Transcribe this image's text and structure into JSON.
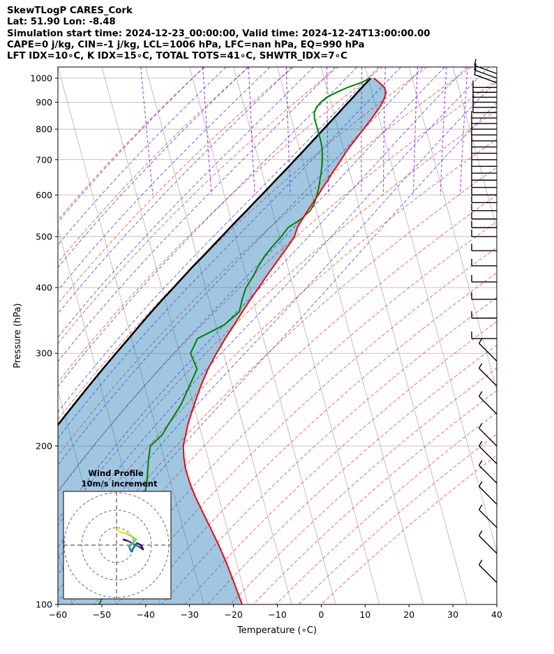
{
  "header": {
    "line1": "SkewTLogP CARES_Cork",
    "line2": "Lat: 51.90   Lon: -8.48",
    "line3": "Simulation start time: 2024-12-23_00:00:00, Valid time: 2024-12-24T13:00:00.00",
    "line4": "CAPE=0 j/kg, CIN=-1 j/kg, LCL=1006 hPa, LFC=nan hPa, EQ=990 hPa",
    "line5": "LFT IDX=10∘C, K IDX=15∘C, TOTAL TOTS=41∘C, SHWTR_IDX=7∘C"
  },
  "chart_data": {
    "type": "skew-t",
    "xlabel": "Temperature (∘C)",
    "ylabel": "Pressure (hPa)",
    "xlim": [
      -60,
      40
    ],
    "ylim": [
      1050,
      100
    ],
    "y_scale": "log",
    "grid": true,
    "x_ticks": [
      -60,
      -50,
      -40,
      -30,
      -20,
      -10,
      0,
      10,
      20,
      30,
      40
    ],
    "y_ticks": [
      100,
      200,
      300,
      400,
      500,
      600,
      700,
      800,
      900,
      1000
    ],
    "series": [
      {
        "role": "temperature",
        "color": "#ff0000",
        "p": [
          1000,
          980,
          960,
          940,
          920,
          900,
          880,
          860,
          840,
          820,
          800,
          780,
          760,
          740,
          720,
          700,
          680,
          660,
          640,
          620,
          600,
          580,
          560,
          540,
          520,
          500,
          480,
          460,
          440,
          420,
          400,
          380,
          360,
          340,
          320,
          300,
          280,
          260,
          240,
          220,
          200,
          190,
          180,
          170,
          160,
          150,
          140,
          130,
          120,
          110,
          100
        ],
        "t": [
          11.3,
          12.3,
          13.1,
          13.2,
          12.6,
          11.8,
          10.8,
          9.6,
          8.4,
          7.1,
          5.8,
          4.4,
          3.0,
          1.5,
          0.1,
          -1.2,
          -2.6,
          -4.1,
          -5.5,
          -7.1,
          -8.6,
          -10.3,
          -12.0,
          -13.7,
          -15.4,
          -16.6,
          -18.6,
          -20.8,
          -23.1,
          -25.5,
          -27.9,
          -30.5,
          -33.1,
          -35.8,
          -38.7,
          -41.6,
          -44.5,
          -47.2,
          -49.8,
          -52.5,
          -54.9,
          -55.5,
          -55.8,
          -55.7,
          -55.3,
          -54.6,
          -53.8,
          -53.0,
          -52.3,
          -51.8,
          -51.3
        ]
      },
      {
        "role": "dewpoint",
        "color": "#008000",
        "p": [
          1000,
          980,
          960,
          940,
          920,
          900,
          880,
          860,
          840,
          820,
          800,
          780,
          760,
          740,
          720,
          700,
          680,
          660,
          640,
          620,
          600,
          580,
          560,
          540,
          520,
          500,
          480,
          460,
          440,
          420,
          400,
          380,
          360,
          340,
          320,
          300,
          280,
          260,
          240,
          230,
          220,
          210,
          200,
          190,
          180,
          170,
          160,
          150,
          140,
          130,
          120,
          110,
          100
        ],
        "t": [
          10.5,
          8.0,
          4.7,
          2.0,
          -0.6,
          -2.3,
          -3.6,
          -4.4,
          -4.7,
          -4.7,
          -4.7,
          -4.7,
          -4.7,
          -4.8,
          -5.1,
          -5.5,
          -6.0,
          -6.6,
          -7.3,
          -8.0,
          -8.9,
          -9.9,
          -11.4,
          -14.0,
          -17.5,
          -19.6,
          -22.1,
          -24.5,
          -26.6,
          -28.5,
          -30.8,
          -32.4,
          -33.8,
          -38.0,
          -45.0,
          -47.5,
          -47.0,
          -49.8,
          -52.8,
          -54.8,
          -56.9,
          -59.0,
          -62.4,
          -63.5,
          -64.5,
          -65.5,
          -67.0,
          -68.0,
          -70.0,
          -73.0,
          -76.4,
          -80.0,
          -83.9
        ]
      },
      {
        "role": "parcel",
        "color": "#000000",
        "p": [
          1000,
          980,
          960,
          940,
          920,
          900,
          880,
          860,
          840,
          820,
          800,
          780,
          760,
          740,
          720,
          700,
          680,
          660,
          640,
          620,
          600,
          580,
          560,
          540,
          520,
          500,
          480,
          460,
          440,
          420,
          400,
          380,
          360,
          340,
          320,
          300,
          280,
          260,
          240,
          220,
          200,
          190,
          180,
          170,
          160,
          150,
          140,
          130,
          120,
          110,
          100
        ],
        "t": [
          10.6,
          9.3,
          8.0,
          6.7,
          5.4,
          4.0,
          2.6,
          1.2,
          -0.3,
          -1.8,
          -3.3,
          -4.9,
          -6.5,
          -8.2,
          -9.9,
          -11.7,
          -13.5,
          -15.4,
          -17.4,
          -19.4,
          -21.5,
          -23.7,
          -25.9,
          -28.3,
          -30.7,
          -33.2,
          -35.8,
          -38.5,
          -41.4,
          -44.3,
          -47.3,
          -50.5,
          -53.8,
          -57.2,
          -60.7,
          -64.5,
          -68.5,
          -72.7,
          -77.2,
          -82.0,
          -87.1,
          -89.9,
          -92.8,
          -95.9,
          -99.2,
          -102.7,
          -106.4,
          -110.4,
          -114.7,
          -119.3,
          -124.4
        ]
      }
    ],
    "wind_barb_levels": [
      1020,
      1000,
      980,
      960,
      940,
      920,
      900,
      880,
      860,
      840,
      820,
      800,
      780,
      760,
      740,
      720,
      700,
      680,
      660,
      640,
      620,
      600,
      580,
      560,
      540,
      520,
      500,
      470,
      440,
      410,
      380,
      350,
      320,
      290,
      260,
      230,
      200,
      185,
      170,
      155,
      140,
      125,
      110
    ],
    "inset": {
      "title": "Wind Profile",
      "subtitle": "10m/s increment"
    }
  },
  "colors": {
    "temperature": "#ff0000",
    "dewpoint": "#008000",
    "parcel": "#000000",
    "cape_fill": "#1f77b4",
    "dry_adiabat": "#ff0000",
    "moist_adiabat": "#0000ff",
    "mixing_ratio": "#9400d3",
    "grid": "#b0b0b0"
  }
}
